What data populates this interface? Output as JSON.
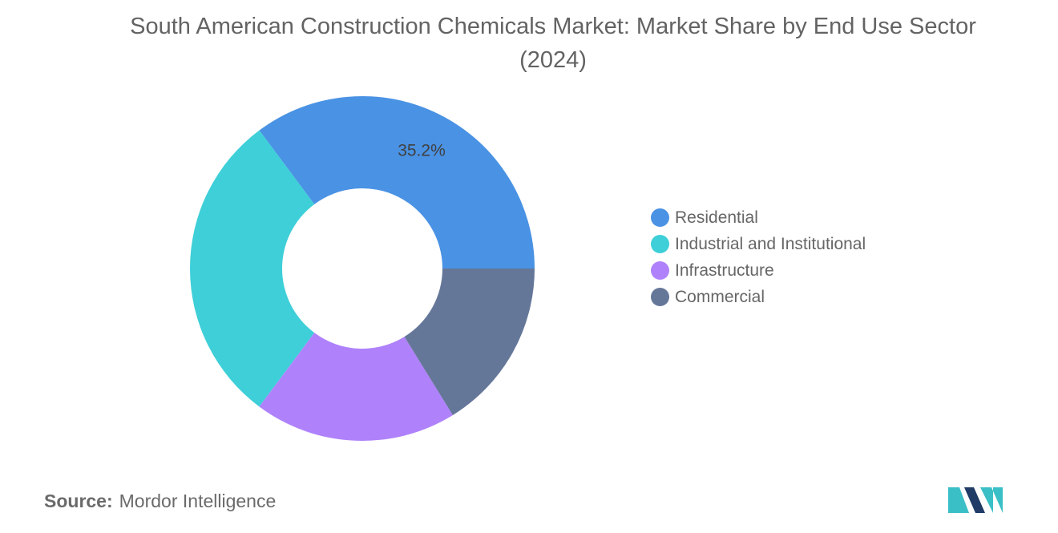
{
  "title": "South American Construction Chemicals Market: Market Share by End Use Sector (2024)",
  "chart_data": {
    "type": "pie",
    "donut": true,
    "categories": [
      "Residential",
      "Industrial and Institutional",
      "Infrastructure",
      "Commercial"
    ],
    "values": [
      35.2,
      29.6,
      19.0,
      16.2
    ],
    "data_labels": [
      "35.2%",
      "",
      "",
      ""
    ],
    "colors": [
      "#4a92e4",
      "#3ecfd8",
      "#af82fb",
      "#657799"
    ],
    "legend_position": "right"
  },
  "legend": [
    {
      "label": "Residential",
      "color": "#4a92e4"
    },
    {
      "label": "Industrial and Institutional",
      "color": "#3ecfd8"
    },
    {
      "label": "Infrastructure",
      "color": "#af82fb"
    },
    {
      "label": "Commercial",
      "color": "#657799"
    }
  ],
  "source": {
    "key": "Source:",
    "value": "Mordor Intelligence"
  },
  "logo": {
    "icon": "mordor-intelligence-logo",
    "colors": [
      "#1f3b66",
      "#3bbfc6"
    ]
  }
}
